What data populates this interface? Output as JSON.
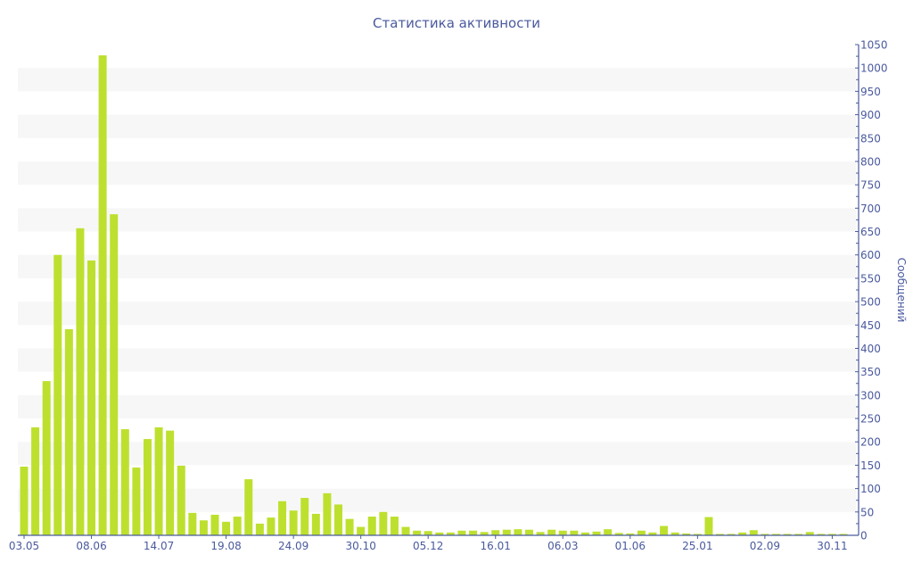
{
  "chart_data": {
    "type": "bar",
    "title": "Статистика активности",
    "ylabel": "Сообщений",
    "xlabel": "",
    "ylim": [
      0,
      1050
    ],
    "ytick_step": 50,
    "y_axis_side": "right",
    "grid": "alternating horizontal bands",
    "colors": {
      "bar": "#bde02f",
      "axis": "#4a5a9e",
      "band": "#f7f7f7",
      "text": "#4a5a9e"
    },
    "x_tick_labels": [
      "03.05",
      "08.06",
      "14.07",
      "19.08",
      "24.09",
      "30.10",
      "05.12",
      "16.01",
      "06.03",
      "01.06",
      "25.01",
      "02.09",
      "30.11"
    ],
    "x_tick_every": 6,
    "values": [
      147,
      231,
      330,
      600,
      441,
      657,
      588,
      1027,
      687,
      227,
      145,
      206,
      231,
      224,
      149,
      48,
      32,
      44,
      29,
      40,
      120,
      25,
      38,
      73,
      53,
      80,
      46,
      90,
      66,
      35,
      18,
      40,
      50,
      40,
      18,
      10,
      9,
      6,
      6,
      10,
      10,
      7,
      11,
      12,
      13,
      12,
      7,
      12,
      10,
      10,
      6,
      8,
      13,
      5,
      4,
      10,
      6,
      20,
      6,
      4,
      3,
      39,
      3,
      3,
      6,
      11,
      3,
      3,
      3,
      3,
      7,
      3,
      3,
      3
    ]
  }
}
